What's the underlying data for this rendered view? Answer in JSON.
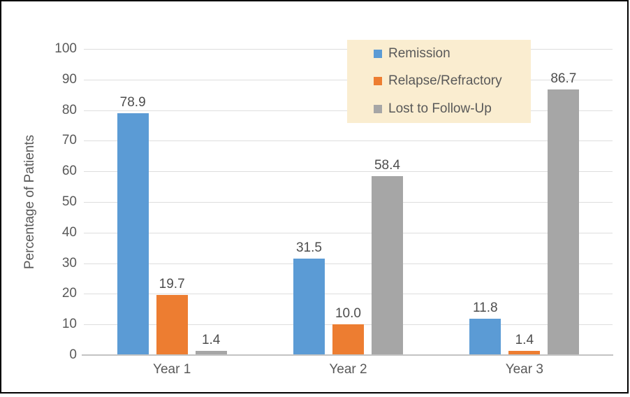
{
  "chart_data": {
    "type": "bar",
    "title": "",
    "xlabel": "",
    "ylabel": "Percentage of Patients",
    "ylim": [
      0,
      100
    ],
    "ytick_step": 10,
    "yticks": [
      "0",
      "10",
      "20",
      "30",
      "40",
      "50",
      "60",
      "70",
      "80",
      "90",
      "100"
    ],
    "grid": true,
    "categories": [
      "Year 1",
      "Year 2",
      "Year 3"
    ],
    "series": [
      {
        "name": "Remission",
        "color": "#5B9BD5",
        "values": [
          78.9,
          31.5,
          11.8
        ],
        "labels": [
          "78.9",
          "31.5",
          "11.8"
        ]
      },
      {
        "name": "Relapse/Refractory",
        "color": "#ED7D31",
        "values": [
          19.7,
          10.0,
          1.4
        ],
        "labels": [
          "19.7",
          "10.0",
          "1.4"
        ]
      },
      {
        "name": "Lost to Follow-Up",
        "color": "#A6A6A6",
        "values": [
          1.4,
          58.4,
          86.7
        ],
        "labels": [
          "1.4",
          "58.4",
          "86.7"
        ]
      }
    ],
    "legend": {
      "position": "top-right-inside",
      "background": "#FAEDD0",
      "entries": [
        "Remission",
        "Relapse/Refractory",
        "Lost to Follow-Up"
      ]
    },
    "colors": {
      "text": "#595959",
      "gridline": "#DEDEDE",
      "axis_line": "#C3C3C3",
      "frame_border": "#000000",
      "background": "#FFFFFF"
    }
  }
}
